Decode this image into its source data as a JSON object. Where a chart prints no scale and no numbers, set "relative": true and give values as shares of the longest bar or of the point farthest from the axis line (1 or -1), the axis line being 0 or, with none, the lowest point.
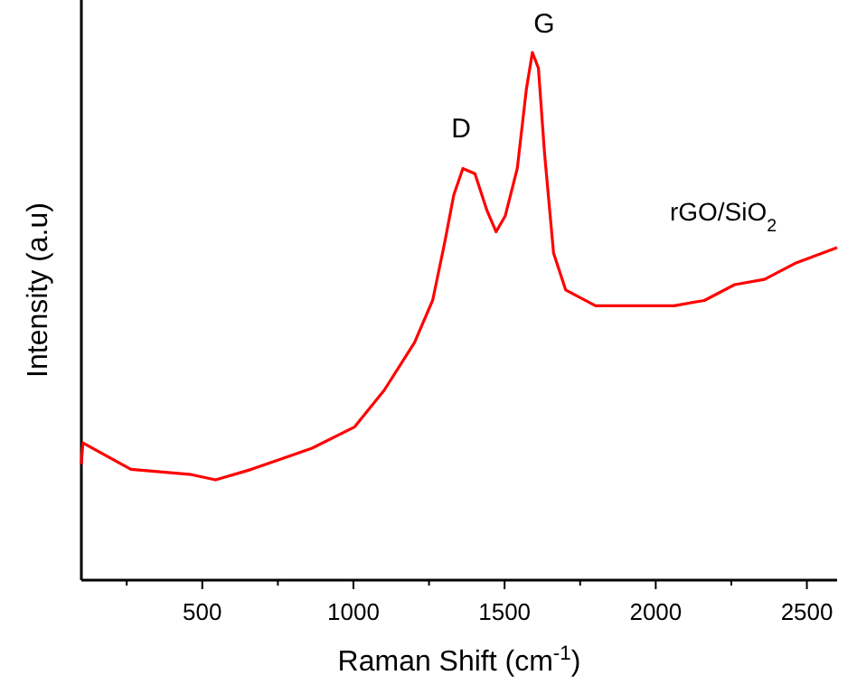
{
  "chart_data": {
    "type": "line",
    "relative": true,
    "xlabel": "Raman Shift (cm$^{-1}$)",
    "ylabel": "Intensity (a.u)",
    "xlim": [
      100,
      2600
    ],
    "xticks": [
      {
        "value": 250,
        "label": null
      },
      500,
      {
        "value": 750,
        "label": null
      },
      1000,
      {
        "value": 1250,
        "label": null
      },
      1500,
      {
        "value": 1750,
        "label": null
      },
      2000,
      {
        "value": 2250,
        "label": null
      },
      2500
    ],
    "x": [
      100,
      105,
      264,
      464,
      544,
      663,
      863,
      1003,
      1102,
      1202,
      1262,
      1302,
      1332,
      1362,
      1402,
      1442,
      1472,
      1502,
      1542,
      1572,
      1592,
      1612,
      1632,
      1662,
      1702,
      1801,
      1961,
      2061,
      2161,
      2261,
      2360,
      2460,
      2600
    ],
    "series": [
      {
        "color": "#ff0000",
        "values": [
          0.22,
          0.26,
          0.21,
          0.2,
          0.19,
          0.21,
          0.25,
          0.29,
          0.36,
          0.45,
          0.53,
          0.64,
          0.73,
          0.78,
          0.77,
          0.7,
          0.66,
          0.69,
          0.78,
          0.93,
          1.0,
          0.97,
          0.81,
          0.62,
          0.55,
          0.52,
          0.52,
          0.52,
          0.53,
          0.56,
          0.57,
          0.6,
          0.63
        ]
      }
    ],
    "annotations": [
      "D",
      "G",
      "rGO/SiO$_{2}$"
    ],
    "line_style": "solid",
    "marker": "none"
  }
}
